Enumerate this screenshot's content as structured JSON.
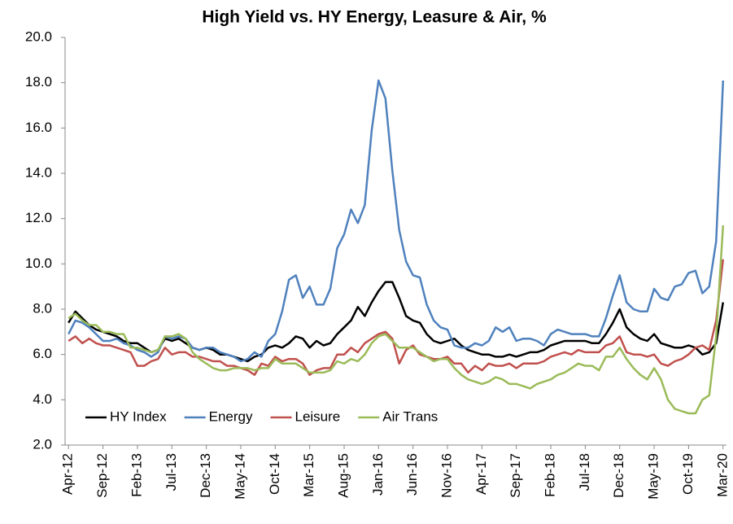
{
  "chart_data": {
    "type": "line",
    "title": "High Yield vs. HY Energy, Leasure & Air, %",
    "categories": [
      "Apr-12",
      null,
      null,
      null,
      null,
      "Sep-12",
      null,
      null,
      null,
      null,
      "Feb-13",
      null,
      null,
      null,
      null,
      "Jul-13",
      null,
      null,
      null,
      null,
      "Dec-13",
      null,
      null,
      null,
      null,
      "May-14",
      null,
      null,
      null,
      null,
      "Oct-14",
      null,
      null,
      null,
      null,
      "Mar-15",
      null,
      null,
      null,
      null,
      "Aug-15",
      null,
      null,
      null,
      null,
      "Jan-16",
      null,
      null,
      null,
      null,
      "Jun-16",
      null,
      null,
      null,
      null,
      "Nov-16",
      null,
      null,
      null,
      null,
      "Apr-17",
      null,
      null,
      null,
      null,
      "Sep-17",
      null,
      null,
      null,
      null,
      "Feb-18",
      null,
      null,
      null,
      null,
      "Jul-18",
      null,
      null,
      null,
      null,
      "Dec-18",
      null,
      null,
      null,
      null,
      "May-19",
      null,
      null,
      null,
      null,
      "Oct-19",
      null,
      null,
      null,
      null,
      "Mar-20"
    ],
    "series": [
      {
        "name": "HY Index",
        "color": "#000000",
        "values": [
          7.4,
          7.9,
          7.6,
          7.3,
          7.1,
          7.0,
          6.9,
          6.8,
          6.6,
          6.5,
          6.5,
          6.3,
          6.1,
          6.2,
          6.7,
          6.6,
          6.7,
          6.5,
          6.3,
          6.2,
          6.3,
          6.2,
          6.0,
          6.0,
          5.9,
          5.8,
          5.7,
          5.9,
          6.0,
          6.3,
          6.4,
          6.3,
          6.5,
          6.8,
          6.7,
          6.3,
          6.6,
          6.4,
          6.5,
          6.9,
          7.2,
          7.5,
          8.1,
          7.7,
          8.3,
          8.8,
          9.2,
          9.2,
          8.5,
          7.7,
          7.5,
          7.4,
          6.9,
          6.6,
          6.5,
          6.6,
          6.7,
          6.4,
          6.2,
          6.1,
          6.0,
          6.0,
          5.9,
          5.9,
          6.0,
          5.9,
          6.0,
          6.1,
          6.1,
          6.2,
          6.4,
          6.5,
          6.6,
          6.6,
          6.6,
          6.6,
          6.5,
          6.5,
          6.9,
          7.4,
          8.0,
          7.2,
          6.9,
          6.7,
          6.6,
          6.9,
          6.5,
          6.4,
          6.3,
          6.3,
          6.4,
          6.3,
          6.0,
          6.1,
          6.5,
          8.3
        ]
      },
      {
        "name": "Energy",
        "color": "#4f81bd",
        "values": [
          6.9,
          7.5,
          7.4,
          7.2,
          6.9,
          6.6,
          6.6,
          6.7,
          6.5,
          6.4,
          6.2,
          6.1,
          5.9,
          6.1,
          6.8,
          6.7,
          6.8,
          6.7,
          6.3,
          6.2,
          6.3,
          6.3,
          6.1,
          6.0,
          5.9,
          5.7,
          5.8,
          6.1,
          5.9,
          6.6,
          6.9,
          7.9,
          9.3,
          9.5,
          8.5,
          9.0,
          8.2,
          8.2,
          8.9,
          10.7,
          11.3,
          12.4,
          11.8,
          12.6,
          15.9,
          18.1,
          17.3,
          14.1,
          11.5,
          10.1,
          9.5,
          9.4,
          8.2,
          7.5,
          7.2,
          7.1,
          6.4,
          6.3,
          6.3,
          6.5,
          6.4,
          6.6,
          7.2,
          7.0,
          7.2,
          6.6,
          6.7,
          6.7,
          6.6,
          6.4,
          6.9,
          7.1,
          7.0,
          6.9,
          6.9,
          6.9,
          6.8,
          6.8,
          7.6,
          8.6,
          9.5,
          8.3,
          8.0,
          7.9,
          7.9,
          8.9,
          8.5,
          8.4,
          9.0,
          9.1,
          9.6,
          9.7,
          8.7,
          9.0,
          11.0,
          18.1
        ]
      },
      {
        "name": "Leisure",
        "color": "#c0504d",
        "values": [
          6.6,
          6.8,
          6.5,
          6.7,
          6.5,
          6.4,
          6.4,
          6.3,
          6.2,
          6.1,
          5.5,
          5.5,
          5.7,
          5.8,
          6.3,
          6.0,
          6.1,
          6.1,
          5.9,
          5.9,
          5.8,
          5.7,
          5.7,
          5.5,
          5.5,
          5.4,
          5.3,
          5.1,
          5.6,
          5.5,
          5.9,
          5.7,
          5.8,
          5.8,
          5.6,
          5.1,
          5.3,
          5.4,
          5.4,
          6.0,
          6.0,
          6.3,
          6.1,
          6.5,
          6.7,
          6.9,
          7.0,
          6.7,
          5.6,
          6.2,
          6.4,
          6.0,
          5.9,
          5.8,
          5.8,
          5.9,
          5.6,
          5.6,
          5.2,
          5.5,
          5.3,
          5.6,
          5.5,
          5.5,
          5.6,
          5.4,
          5.6,
          5.6,
          5.6,
          5.7,
          5.9,
          6.0,
          6.1,
          6.0,
          6.2,
          6.1,
          6.1,
          6.1,
          6.4,
          6.5,
          6.8,
          6.1,
          6.0,
          6.0,
          5.9,
          6.0,
          5.6,
          5.5,
          5.7,
          5.8,
          6.0,
          6.3,
          6.4,
          6.2,
          7.5,
          10.2
        ]
      },
      {
        "name": "Air Trans",
        "color": "#9bbb59",
        "values": [
          7.6,
          7.8,
          7.5,
          7.3,
          7.3,
          7.0,
          7.0,
          6.9,
          6.9,
          6.3,
          6.3,
          6.2,
          6.1,
          6.2,
          6.8,
          6.8,
          6.9,
          6.7,
          6.1,
          5.8,
          5.6,
          5.4,
          5.3,
          5.3,
          5.4,
          5.4,
          5.4,
          5.3,
          5.4,
          5.4,
          5.8,
          5.6,
          5.6,
          5.6,
          5.4,
          5.2,
          5.2,
          5.2,
          5.3,
          5.7,
          5.6,
          5.8,
          5.7,
          6.0,
          6.5,
          6.8,
          6.9,
          6.6,
          6.3,
          6.3,
          6.3,
          6.1,
          5.9,
          5.7,
          5.8,
          5.8,
          5.4,
          5.1,
          4.9,
          4.8,
          4.7,
          4.8,
          5.0,
          4.9,
          4.7,
          4.7,
          4.6,
          4.5,
          4.7,
          4.8,
          4.9,
          5.1,
          5.2,
          5.4,
          5.6,
          5.5,
          5.5,
          5.3,
          5.9,
          5.9,
          6.3,
          5.8,
          5.4,
          5.1,
          4.9,
          5.4,
          4.9,
          4.0,
          3.6,
          3.5,
          3.4,
          3.4,
          4.0,
          4.2,
          6.8,
          11.7
        ]
      }
    ],
    "ylim": [
      2,
      20
    ],
    "yticks": [
      {
        "value": 2,
        "label": "2.0"
      },
      {
        "value": 4,
        "label": "4.0"
      },
      {
        "value": 6,
        "label": "6.0"
      },
      {
        "value": 8,
        "label": "8.0"
      },
      {
        "value": 10,
        "label": "10.0"
      },
      {
        "value": 12,
        "label": "12.0"
      },
      {
        "value": 14,
        "label": "14.0"
      },
      {
        "value": 16,
        "label": "16.0"
      },
      {
        "value": 18,
        "label": "18.0"
      },
      {
        "value": 20,
        "label": "20.0"
      }
    ],
    "grid": false,
    "legend": "lower left"
  }
}
